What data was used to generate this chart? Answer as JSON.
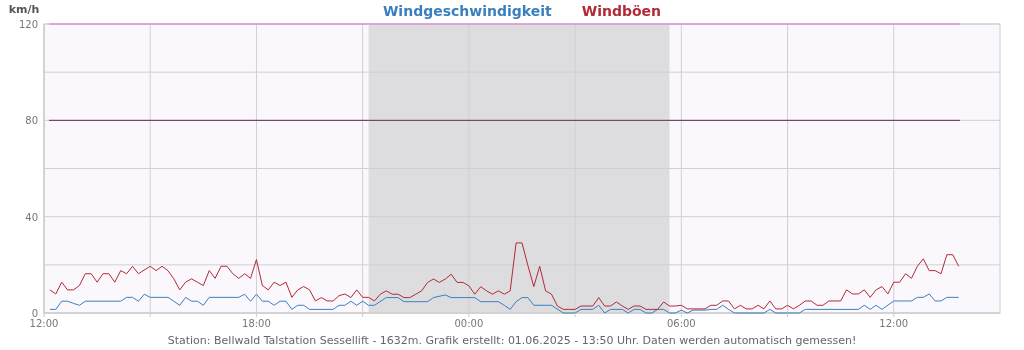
{
  "chart_data": {
    "type": "line",
    "ylabel": "km/h",
    "xlim": [
      "2025-05-31T12:00",
      "2025-06-01T15:00"
    ],
    "xticks": [
      {
        "value": "2025-05-31T12:00",
        "label": "12:00"
      },
      {
        "value": "2025-05-31T15:00",
        "label": null
      },
      {
        "value": "2025-05-31T18:00",
        "label": "18:00"
      },
      {
        "value": "2025-05-31T21:00",
        "label": null
      },
      {
        "value": "2025-06-01T00:00",
        "label": "00:00"
      },
      {
        "value": "2025-06-01T03:00",
        "label": null
      },
      {
        "value": "2025-06-01T06:00",
        "label": "06:00"
      },
      {
        "value": "2025-06-01T09:00",
        "label": null
      },
      {
        "value": "2025-06-01T12:00",
        "label": "12:00"
      }
    ],
    "ylim": [
      0,
      120
    ],
    "yticks": [
      0,
      {
        "value": 20,
        "label": null
      },
      40,
      {
        "value": 60,
        "label": null
      },
      80,
      {
        "value": 100,
        "label": null
      },
      120
    ],
    "grid": true,
    "legend": "top",
    "bands": [
      {
        "axis": "x",
        "from": "2025-05-31T21:10",
        "to": "2025-06-01T05:40",
        "color": "#dddde0"
      }
    ],
    "ref_lines": [
      {
        "axis": "y",
        "value": 80,
        "color": "#5a3050"
      },
      {
        "axis": "y",
        "value": 120,
        "color": "#e070e0"
      }
    ],
    "annotations": [
      "Station: Bellwald Talstation Sessellift - 1632m. Grafik erstellt: 01.06.2025 - 13:50 Uhr. Daten werden automatisch gemessen!"
    ],
    "series": [
      {
        "name": "Windgeschwindigkeit",
        "color": "#3a7fc0",
        "x": [
          "2025-05-31T12:10",
          "2025-05-31T12:20",
          "2025-05-31T12:30",
          "2025-05-31T12:40",
          "2025-05-31T12:50",
          "2025-05-31T13:00",
          "2025-05-31T13:10",
          "2025-05-31T14:10",
          "2025-05-31T14:20",
          "2025-05-31T14:30",
          "2025-05-31T14:40",
          "2025-05-31T14:50",
          "2025-05-31T15:00",
          "2025-05-31T15:30",
          "2025-05-31T15:40",
          "2025-05-31T15:50",
          "2025-05-31T16:00",
          "2025-05-31T16:10",
          "2025-05-31T16:20",
          "2025-05-31T16:30",
          "2025-05-31T16:40",
          "2025-05-31T17:30",
          "2025-05-31T17:40",
          "2025-05-31T17:50",
          "2025-05-31T18:00",
          "2025-05-31T18:10",
          "2025-05-31T18:20",
          "2025-05-31T18:30",
          "2025-05-31T18:40",
          "2025-05-31T18:50",
          "2025-05-31T19:00",
          "2025-05-31T19:10",
          "2025-05-31T19:20",
          "2025-05-31T19:30",
          "2025-05-31T20:10",
          "2025-05-31T20:20",
          "2025-05-31T20:30",
          "2025-05-31T20:40",
          "2025-05-31T20:50",
          "2025-05-31T21:00",
          "2025-05-31T21:10",
          "2025-05-31T21:20",
          "2025-05-31T21:40",
          "2025-05-31T22:00",
          "2025-05-31T22:10",
          "2025-05-31T22:50",
          "2025-05-31T23:00",
          "2025-05-31T23:20",
          "2025-05-31T23:30",
          "2025-06-01T00:10",
          "2025-06-01T00:20",
          "2025-06-01T00:50",
          "2025-06-01T01:00",
          "2025-06-01T01:10",
          "2025-06-01T01:20",
          "2025-06-01T01:30",
          "2025-06-01T01:40",
          "2025-06-01T01:50",
          "2025-06-01T02:20",
          "2025-06-01T02:40",
          "2025-06-01T03:00",
          "2025-06-01T03:10",
          "2025-06-01T03:30",
          "2025-06-01T03:40",
          "2025-06-01T03:50",
          "2025-06-01T04:00",
          "2025-06-01T04:20",
          "2025-06-01T04:30",
          "2025-06-01T04:40",
          "2025-06-01T04:50",
          "2025-06-01T05:00",
          "2025-06-01T05:10",
          "2025-06-01T05:20",
          "2025-06-01T05:30",
          "2025-06-01T05:40",
          "2025-06-01T05:50",
          "2025-06-01T06:00",
          "2025-06-01T06:10",
          "2025-06-01T06:20",
          "2025-06-01T06:40",
          "2025-06-01T06:50",
          "2025-06-01T07:00",
          "2025-06-01T07:10",
          "2025-06-01T07:20",
          "2025-06-01T07:30",
          "2025-06-01T08:20",
          "2025-06-01T08:30",
          "2025-06-01T08:40",
          "2025-06-01T09:20",
          "2025-06-01T09:30",
          "2025-06-01T11:00",
          "2025-06-01T11:10",
          "2025-06-01T11:20",
          "2025-06-01T11:30",
          "2025-06-01T11:40",
          "2025-06-01T12:00",
          "2025-06-01T12:30",
          "2025-06-01T12:40",
          "2025-06-01T12:50",
          "2025-06-01T13:00",
          "2025-06-01T13:10",
          "2025-06-01T13:20",
          "2025-06-01T13:30",
          "2025-06-01T13:50"
        ],
        "values": [
          1.5,
          1.5,
          4.9,
          4.9,
          4,
          3.2,
          4.9,
          4.9,
          6.5,
          6.5,
          4.9,
          7.8,
          6.5,
          6.5,
          4.9,
          3.2,
          6.5,
          4.9,
          4.9,
          3.2,
          6.5,
          6.5,
          7.8,
          4.9,
          7.8,
          4.9,
          4.9,
          3.2,
          4.9,
          4.9,
          1.5,
          3.2,
          3.2,
          1.5,
          1.5,
          3.2,
          3.2,
          4.9,
          3.2,
          4.9,
          3.2,
          3.2,
          6.4,
          6.4,
          4.7,
          4.7,
          6.4,
          7.5,
          6.4,
          6.4,
          4.7,
          4.7,
          3.2,
          1.5,
          4.7,
          6.4,
          6.4,
          3.2,
          3.2,
          0,
          0,
          1.5,
          1.5,
          3.2,
          0,
          1.5,
          1.5,
          0,
          1.5,
          1.5,
          0,
          0,
          1.5,
          1.5,
          0,
          0,
          1.2,
          0,
          1.2,
          1.2,
          1.5,
          1.5,
          3.2,
          1.5,
          0,
          0,
          1.5,
          0,
          0,
          1.5,
          1.5,
          3.2,
          1.5,
          3.2,
          1.5,
          5,
          5,
          6.5,
          6.5,
          7.9,
          5,
          5,
          6.5,
          6.5
        ]
      },
      {
        "name": "Windböen",
        "color": "#b22a35",
        "x": [
          "2025-05-31T12:10",
          "2025-05-31T12:20",
          "2025-05-31T12:30",
          "2025-05-31T12:40",
          "2025-05-31T12:50",
          "2025-05-31T13:00",
          "2025-05-31T13:10",
          "2025-05-31T13:20",
          "2025-05-31T13:30",
          "2025-05-31T13:40",
          "2025-05-31T13:50",
          "2025-05-31T14:00",
          "2025-05-31T14:10",
          "2025-05-31T14:20",
          "2025-05-31T14:30",
          "2025-05-31T14:40",
          "2025-05-31T15:00",
          "2025-05-31T15:10",
          "2025-05-31T15:20",
          "2025-05-31T15:30",
          "2025-05-31T15:40",
          "2025-05-31T15:50",
          "2025-05-31T16:00",
          "2025-05-31T16:10",
          "2025-05-31T16:20",
          "2025-05-31T16:30",
          "2025-05-31T16:40",
          "2025-05-31T16:50",
          "2025-05-31T17:00",
          "2025-05-31T17:10",
          "2025-05-31T17:20",
          "2025-05-31T17:30",
          "2025-05-31T17:40",
          "2025-05-31T17:50",
          "2025-05-31T18:00",
          "2025-05-31T18:10",
          "2025-05-31T18:20",
          "2025-05-31T18:30",
          "2025-05-31T18:40",
          "2025-05-31T18:50",
          "2025-05-31T19:00",
          "2025-05-31T19:10",
          "2025-05-31T19:20",
          "2025-05-31T19:30",
          "2025-05-31T19:40",
          "2025-05-31T19:50",
          "2025-05-31T20:00",
          "2025-05-31T20:10",
          "2025-05-31T20:20",
          "2025-05-31T20:30",
          "2025-05-31T20:40",
          "2025-05-31T20:50",
          "2025-05-31T21:00",
          "2025-05-31T21:10",
          "2025-05-31T21:20",
          "2025-05-31T21:30",
          "2025-05-31T21:40",
          "2025-05-31T21:50",
          "2025-05-31T22:00",
          "2025-05-31T22:10",
          "2025-05-31T22:20",
          "2025-05-31T22:30",
          "2025-05-31T22:40",
          "2025-05-31T22:50",
          "2025-05-31T23:00",
          "2025-05-31T23:10",
          "2025-05-31T23:20",
          "2025-05-31T23:30",
          "2025-05-31T23:40",
          "2025-05-31T23:50",
          "2025-06-01T00:00",
          "2025-06-01T00:10",
          "2025-06-01T00:20",
          "2025-06-01T00:30",
          "2025-06-01T00:40",
          "2025-06-01T00:50",
          "2025-06-01T01:00",
          "2025-06-01T01:10",
          "2025-06-01T01:20",
          "2025-06-01T01:30",
          "2025-06-01T01:40",
          "2025-06-01T01:50",
          "2025-06-01T02:00",
          "2025-06-01T02:10",
          "2025-06-01T02:20",
          "2025-06-01T02:30",
          "2025-06-01T02:40",
          "2025-06-01T02:50",
          "2025-06-01T03:00",
          "2025-06-01T03:10",
          "2025-06-01T03:20",
          "2025-06-01T03:30",
          "2025-06-01T03:40",
          "2025-06-01T03:50",
          "2025-06-01T04:00",
          "2025-06-01T04:10",
          "2025-06-01T04:20",
          "2025-06-01T04:30",
          "2025-06-01T04:40",
          "2025-06-01T04:50",
          "2025-06-01T05:00",
          "2025-06-01T05:10",
          "2025-06-01T05:20",
          "2025-06-01T05:30",
          "2025-06-01T05:40",
          "2025-06-01T05:50",
          "2025-06-01T06:00",
          "2025-06-01T06:10",
          "2025-06-01T06:20",
          "2025-06-01T06:40",
          "2025-06-01T06:50",
          "2025-06-01T07:00",
          "2025-06-01T07:10",
          "2025-06-01T07:20",
          "2025-06-01T07:30",
          "2025-06-01T07:40",
          "2025-06-01T07:50",
          "2025-06-01T08:00",
          "2025-06-01T08:10",
          "2025-06-01T08:20",
          "2025-06-01T08:30",
          "2025-06-01T08:40",
          "2025-06-01T08:50",
          "2025-06-01T09:00",
          "2025-06-01T09:10",
          "2025-06-01T09:20",
          "2025-06-01T09:30",
          "2025-06-01T09:40",
          "2025-06-01T09:50",
          "2025-06-01T10:00",
          "2025-06-01T10:10",
          "2025-06-01T10:30",
          "2025-06-01T10:40",
          "2025-06-01T10:50",
          "2025-06-01T11:00",
          "2025-06-01T11:10",
          "2025-06-01T11:20",
          "2025-06-01T11:30",
          "2025-06-01T11:40",
          "2025-06-01T11:50",
          "2025-06-01T12:00",
          "2025-06-01T12:10",
          "2025-06-01T12:20",
          "2025-06-01T12:30",
          "2025-06-01T12:40",
          "2025-06-01T12:50",
          "2025-06-01T13:00",
          "2025-06-01T13:10",
          "2025-06-01T13:20",
          "2025-06-01T13:30",
          "2025-06-01T13:40",
          "2025-06-01T13:50"
        ],
        "values": [
          9.6,
          7.9,
          12.8,
          9.6,
          9.6,
          11.4,
          16.3,
          16.3,
          12.8,
          16.3,
          16.3,
          12.8,
          17.6,
          16.3,
          19.4,
          16.3,
          19.4,
          17.6,
          19.4,
          17.6,
          14.2,
          9.6,
          12.8,
          14.2,
          12.8,
          11.4,
          17.6,
          14.4,
          19.4,
          19.4,
          16.3,
          14.4,
          16.3,
          14.4,
          22.2,
          11.4,
          9.6,
          12.8,
          11.4,
          12.8,
          6.5,
          9.6,
          11,
          9.6,
          5,
          6.4,
          5,
          5,
          7.2,
          7.9,
          6.4,
          9.6,
          6.5,
          6.5,
          5,
          7.8,
          9.2,
          7.8,
          7.8,
          6.4,
          6.4,
          7.8,
          9.2,
          12.7,
          14.1,
          12.7,
          14.1,
          16.1,
          12.7,
          12.7,
          11.3,
          7.8,
          10.9,
          9.2,
          7.8,
          9.2,
          7.8,
          9.2,
          29.1,
          29.1,
          19.7,
          11,
          19.4,
          9.2,
          7.8,
          2.9,
          1.5,
          1.5,
          1.5,
          2.9,
          2.9,
          2.9,
          6.4,
          2.9,
          2.9,
          4.6,
          2.9,
          1.5,
          2.9,
          2.9,
          1.5,
          1.5,
          1.5,
          4.6,
          2.9,
          2.9,
          3.2,
          1.7,
          1.7,
          1.7,
          3.2,
          3.2,
          5,
          5,
          1.7,
          3.2,
          1.7,
          1.7,
          3.2,
          1.7,
          5,
          1.7,
          1.7,
          3.2,
          1.7,
          3.2,
          5,
          5,
          3.2,
          3.2,
          5,
          5,
          9.6,
          7.9,
          7.9,
          9.6,
          6.5,
          9.6,
          11,
          7.9,
          12.8,
          12.8,
          16.3,
          14.4,
          19.4,
          22.5,
          17.6,
          17.6,
          16.3,
          24.2,
          24.2,
          19.4
        ]
      }
    ]
  }
}
